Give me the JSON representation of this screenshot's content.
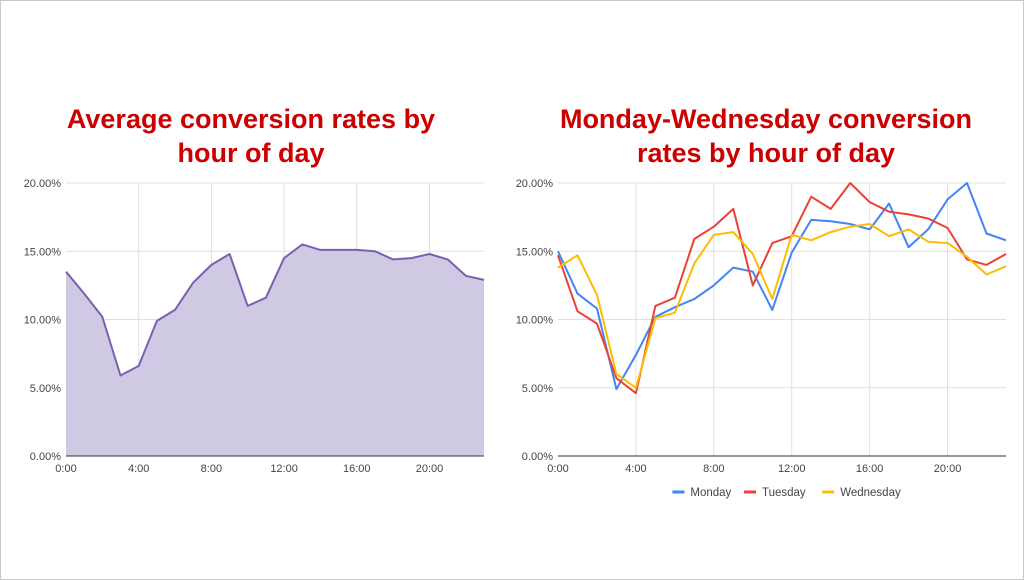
{
  "slide": {
    "left_title_line1": "Average conversion rates by",
    "left_title_line2": "hour of day",
    "right_title_line1": "Monday-Wednesday conversion",
    "right_title_line2": "rates by hour of day"
  },
  "colors": {
    "title": "#cc0000",
    "area_fill": "#d0c9e4",
    "area_line": "#7b60b2",
    "monday": "#4285f4",
    "tuesday": "#ea4335",
    "wednesday": "#fbbc04",
    "grid": "#e0e0e0",
    "axis": "#333333",
    "tick_text": "#444444"
  },
  "chart_data": [
    {
      "type": "area",
      "title": "Average conversion rates by hour of day",
      "xlabel": "",
      "ylabel": "",
      "x": [
        0,
        1,
        2,
        3,
        4,
        5,
        6,
        7,
        8,
        9,
        10,
        11,
        12,
        13,
        14,
        15,
        16,
        17,
        18,
        19,
        20,
        21,
        22,
        23
      ],
      "xlim": [
        0,
        23
      ],
      "ylim": [
        0,
        20
      ],
      "grid": true,
      "x_tick_values": [
        0,
        4,
        8,
        12,
        16,
        20
      ],
      "x_tick_labels": [
        "0:00",
        "4:00",
        "8:00",
        "12:00",
        "16:00",
        "20:00"
      ],
      "y_tick_values": [
        0,
        5,
        10,
        15,
        20
      ],
      "y_tick_labels": [
        "0.00%",
        "5.00%",
        "10.00%",
        "15.00%",
        "20.00%"
      ],
      "series": [
        {
          "name": "Average",
          "values": [
            13.5,
            11.9,
            10.2,
            5.9,
            6.6,
            9.9,
            10.7,
            12.7,
            14.0,
            14.8,
            11.0,
            11.6,
            14.5,
            15.5,
            15.1,
            15.1,
            15.1,
            15.0,
            14.4,
            14.5,
            14.8,
            14.4,
            13.2,
            12.9
          ]
        }
      ]
    },
    {
      "type": "line",
      "title": "Monday-Wednesday conversion rates by hour of day",
      "xlabel": "",
      "ylabel": "",
      "x": [
        0,
        1,
        2,
        3,
        4,
        5,
        6,
        7,
        8,
        9,
        10,
        11,
        12,
        13,
        14,
        15,
        16,
        17,
        18,
        19,
        20,
        21,
        22,
        23
      ],
      "xlim": [
        0,
        23
      ],
      "ylim": [
        0,
        20
      ],
      "grid": true,
      "legend": "bottom",
      "x_tick_values": [
        0,
        4,
        8,
        12,
        16,
        20
      ],
      "x_tick_labels": [
        "0:00",
        "4:00",
        "8:00",
        "12:00",
        "16:00",
        "20:00"
      ],
      "y_tick_values": [
        0,
        5,
        10,
        15,
        20
      ],
      "y_tick_labels": [
        "0.00%",
        "5.00%",
        "10.00%",
        "15.00%",
        "20.00%"
      ],
      "series": [
        {
          "name": "Monday",
          "values": [
            15.0,
            11.9,
            10.8,
            4.9,
            7.4,
            10.2,
            10.9,
            11.5,
            12.5,
            13.8,
            13.5,
            10.7,
            14.9,
            17.3,
            17.2,
            17.0,
            16.6,
            18.5,
            15.3,
            16.6,
            18.8,
            20.0,
            16.3,
            15.8
          ]
        },
        {
          "name": "Tuesday",
          "values": [
            14.7,
            10.6,
            9.7,
            5.7,
            4.6,
            11.0,
            11.6,
            15.9,
            16.8,
            18.1,
            12.5,
            15.6,
            16.1,
            19.0,
            18.1,
            20.0,
            18.6,
            17.9,
            17.7,
            17.4,
            16.7,
            14.4,
            14.0,
            14.8
          ]
        },
        {
          "name": "Wednesday",
          "values": [
            13.8,
            14.7,
            11.8,
            6.0,
            5.0,
            10.1,
            10.5,
            14.1,
            16.2,
            16.4,
            14.8,
            11.5,
            16.2,
            15.8,
            16.4,
            16.8,
            17.0,
            16.1,
            16.6,
            15.7,
            15.6,
            14.6,
            13.3,
            13.9
          ]
        }
      ]
    }
  ]
}
